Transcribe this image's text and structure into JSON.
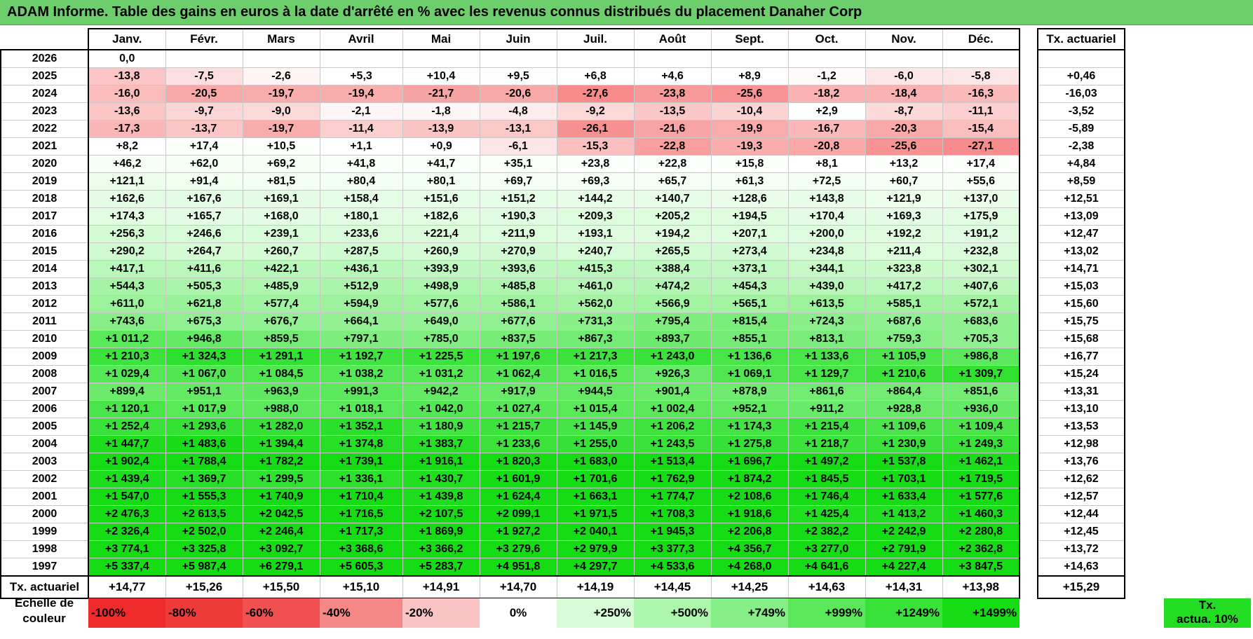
{
  "title": "ADAM Informe. Table des gains en euros à la date d'arrêté en % avec les revenus connus distribués du placement Danaher Corp",
  "months": [
    "Janv.",
    "Févr.",
    "Mars",
    "Avril",
    "Mai",
    "Juin",
    "Juil.",
    "Août",
    "Sept.",
    "Oct.",
    "Nov.",
    "Déc."
  ],
  "right_header": "Tx. actuariel",
  "rows": [
    {
      "year": "2026",
      "values": [
        "0,0",
        "",
        "",
        "",
        "",
        "",
        "",
        "",
        "",
        "",
        "",
        ""
      ],
      "rate": ""
    },
    {
      "year": "2025",
      "values": [
        "-13,8",
        "-7,5",
        "-2,6",
        "+5,3",
        "+10,4",
        "+9,5",
        "+6,8",
        "+4,6",
        "+8,9",
        "-1,2",
        "-6,0",
        "-5,8"
      ],
      "rate": "+0,46"
    },
    {
      "year": "2024",
      "values": [
        "-16,0",
        "-20,5",
        "-19,7",
        "-19,4",
        "-21,7",
        "-20,6",
        "-27,6",
        "-23,8",
        "-25,6",
        "-18,2",
        "-18,4",
        "-16,3"
      ],
      "rate": "-16,03"
    },
    {
      "year": "2023",
      "values": [
        "-13,6",
        "-9,7",
        "-9,0",
        "-2,1",
        "-1,8",
        "-4,8",
        "-9,2",
        "-13,5",
        "-10,4",
        "+2,9",
        "-8,7",
        "-11,1"
      ],
      "rate": "-3,52"
    },
    {
      "year": "2022",
      "values": [
        "-17,3",
        "-13,7",
        "-19,7",
        "-11,4",
        "-13,9",
        "-13,1",
        "-26,1",
        "-21,6",
        "-19,9",
        "-16,7",
        "-20,3",
        "-15,4"
      ],
      "rate": "-5,89"
    },
    {
      "year": "2021",
      "values": [
        "+8,2",
        "+17,4",
        "+10,5",
        "+1,1",
        "+0,9",
        "-6,1",
        "-15,3",
        "-22,8",
        "-19,3",
        "-20,8",
        "-25,6",
        "-27,1"
      ],
      "rate": "-2,38"
    },
    {
      "year": "2020",
      "values": [
        "+46,2",
        "+62,0",
        "+69,2",
        "+41,8",
        "+41,7",
        "+35,1",
        "+23,8",
        "+22,8",
        "+15,8",
        "+8,1",
        "+13,2",
        "+17,4"
      ],
      "rate": "+4,84"
    },
    {
      "year": "2019",
      "values": [
        "+121,1",
        "+91,4",
        "+81,5",
        "+80,4",
        "+80,1",
        "+69,7",
        "+69,3",
        "+65,7",
        "+61,3",
        "+72,5",
        "+60,7",
        "+55,6"
      ],
      "rate": "+8,59"
    },
    {
      "year": "2018",
      "values": [
        "+162,6",
        "+167,6",
        "+169,1",
        "+158,4",
        "+151,6",
        "+151,2",
        "+144,2",
        "+140,7",
        "+128,6",
        "+143,8",
        "+121,9",
        "+137,0"
      ],
      "rate": "+12,51"
    },
    {
      "year": "2017",
      "values": [
        "+174,3",
        "+165,7",
        "+168,0",
        "+180,1",
        "+182,6",
        "+190,3",
        "+209,3",
        "+205,2",
        "+194,5",
        "+170,4",
        "+169,3",
        "+175,9"
      ],
      "rate": "+13,09"
    },
    {
      "year": "2016",
      "values": [
        "+256,3",
        "+246,6",
        "+239,1",
        "+233,6",
        "+221,4",
        "+211,9",
        "+193,1",
        "+194,2",
        "+207,1",
        "+200,0",
        "+192,2",
        "+191,2"
      ],
      "rate": "+12,47"
    },
    {
      "year": "2015",
      "values": [
        "+290,2",
        "+264,7",
        "+260,7",
        "+287,5",
        "+260,9",
        "+270,9",
        "+240,7",
        "+265,5",
        "+273,4",
        "+234,8",
        "+211,4",
        "+232,8"
      ],
      "rate": "+13,02"
    },
    {
      "year": "2014",
      "values": [
        "+417,1",
        "+411,6",
        "+422,1",
        "+436,1",
        "+393,9",
        "+393,6",
        "+415,3",
        "+388,4",
        "+373,1",
        "+344,1",
        "+323,8",
        "+302,1"
      ],
      "rate": "+14,71"
    },
    {
      "year": "2013",
      "values": [
        "+544,3",
        "+505,3",
        "+485,9",
        "+512,9",
        "+498,9",
        "+485,8",
        "+461,0",
        "+474,2",
        "+454,3",
        "+439,0",
        "+417,2",
        "+407,6"
      ],
      "rate": "+15,03"
    },
    {
      "year": "2012",
      "values": [
        "+611,0",
        "+621,8",
        "+577,4",
        "+594,9",
        "+577,6",
        "+586,1",
        "+562,0",
        "+566,9",
        "+565,1",
        "+613,5",
        "+585,1",
        "+572,1"
      ],
      "rate": "+15,60"
    },
    {
      "year": "2011",
      "values": [
        "+743,6",
        "+675,3",
        "+676,7",
        "+664,1",
        "+649,0",
        "+677,6",
        "+731,3",
        "+795,4",
        "+815,4",
        "+724,3",
        "+687,6",
        "+683,6"
      ],
      "rate": "+15,75"
    },
    {
      "year": "2010",
      "values": [
        "+1 011,2",
        "+946,8",
        "+859,5",
        "+797,1",
        "+785,0",
        "+837,5",
        "+867,3",
        "+893,7",
        "+855,1",
        "+813,1",
        "+759,3",
        "+705,3"
      ],
      "rate": "+15,68"
    },
    {
      "year": "2009",
      "values": [
        "+1 210,3",
        "+1 324,3",
        "+1 291,1",
        "+1 192,7",
        "+1 225,5",
        "+1 197,6",
        "+1 217,3",
        "+1 243,0",
        "+1 136,6",
        "+1 133,6",
        "+1 105,9",
        "+986,8"
      ],
      "rate": "+16,77"
    },
    {
      "year": "2008",
      "values": [
        "+1 029,4",
        "+1 067,0",
        "+1 084,5",
        "+1 038,2",
        "+1 031,2",
        "+1 062,4",
        "+1 016,5",
        "+926,3",
        "+1 069,1",
        "+1 129,7",
        "+1 210,6",
        "+1 309,7"
      ],
      "rate": "+15,24"
    },
    {
      "year": "2007",
      "values": [
        "+899,4",
        "+951,1",
        "+963,9",
        "+991,3",
        "+942,2",
        "+917,9",
        "+944,5",
        "+901,4",
        "+878,9",
        "+861,6",
        "+864,4",
        "+851,6"
      ],
      "rate": "+13,31"
    },
    {
      "year": "2006",
      "values": [
        "+1 120,1",
        "+1 017,9",
        "+988,0",
        "+1 018,1",
        "+1 042,0",
        "+1 027,4",
        "+1 015,4",
        "+1 002,4",
        "+952,1",
        "+911,2",
        "+928,8",
        "+936,0"
      ],
      "rate": "+13,10"
    },
    {
      "year": "2005",
      "values": [
        "+1 252,4",
        "+1 293,6",
        "+1 282,0",
        "+1 352,1",
        "+1 180,9",
        "+1 215,7",
        "+1 145,9",
        "+1 206,2",
        "+1 174,3",
        "+1 215,4",
        "+1 109,6",
        "+1 109,4"
      ],
      "rate": "+13,53"
    },
    {
      "year": "2004",
      "values": [
        "+1 447,7",
        "+1 483,6",
        "+1 394,4",
        "+1 374,8",
        "+1 383,7",
        "+1 233,6",
        "+1 255,0",
        "+1 243,5",
        "+1 275,8",
        "+1 218,7",
        "+1 230,9",
        "+1 249,3"
      ],
      "rate": "+12,98"
    },
    {
      "year": "2003",
      "values": [
        "+1 902,4",
        "+1 788,4",
        "+1 782,2",
        "+1 739,1",
        "+1 916,1",
        "+1 820,3",
        "+1 683,0",
        "+1 513,4",
        "+1 696,7",
        "+1 497,2",
        "+1 537,8",
        "+1 462,1"
      ],
      "rate": "+13,76"
    },
    {
      "year": "2002",
      "values": [
        "+1 439,4",
        "+1 369,7",
        "+1 299,5",
        "+1 336,1",
        "+1 430,7",
        "+1 601,9",
        "+1 701,6",
        "+1 762,9",
        "+1 874,2",
        "+1 845,5",
        "+1 703,1",
        "+1 719,5"
      ],
      "rate": "+12,62"
    },
    {
      "year": "2001",
      "values": [
        "+1 547,0",
        "+1 555,3",
        "+1 740,9",
        "+1 710,4",
        "+1 439,8",
        "+1 624,4",
        "+1 663,1",
        "+1 774,7",
        "+2 108,6",
        "+1 746,4",
        "+1 633,4",
        "+1 577,6"
      ],
      "rate": "+12,57"
    },
    {
      "year": "2000",
      "values": [
        "+2 476,3",
        "+2 613,5",
        "+2 042,5",
        "+1 716,5",
        "+2 107,5",
        "+2 099,1",
        "+1 971,5",
        "+1 708,3",
        "+1 918,6",
        "+1 425,4",
        "+1 413,2",
        "+1 460,3"
      ],
      "rate": "+12,44"
    },
    {
      "year": "1999",
      "values": [
        "+2 326,4",
        "+2 502,0",
        "+2 246,4",
        "+1 717,3",
        "+1 869,9",
        "+1 927,2",
        "+2 040,1",
        "+1 945,3",
        "+2 206,8",
        "+2 382,2",
        "+2 242,9",
        "+2 280,8"
      ],
      "rate": "+12,45"
    },
    {
      "year": "1998",
      "values": [
        "+3 774,1",
        "+3 325,8",
        "+3 092,7",
        "+3 368,6",
        "+3 366,2",
        "+3 279,6",
        "+2 979,9",
        "+3 377,3",
        "+4 356,7",
        "+3 277,0",
        "+2 791,9",
        "+2 362,8"
      ],
      "rate": "+13,72"
    },
    {
      "year": "1997",
      "values": [
        "+5 337,4",
        "+5 987,4",
        "+6 279,1",
        "+5 605,3",
        "+5 283,7",
        "+4 951,8",
        "+4 297,7",
        "+4 533,6",
        "+4 268,0",
        "+4 641,6",
        "+4 227,4",
        "+3 847,5"
      ],
      "rate": "+14,63"
    }
  ],
  "summary": {
    "label": "Tx. actuariel",
    "values": [
      "+14,77",
      "+15,26",
      "+15,50",
      "+15,10",
      "+14,91",
      "+14,70",
      "+14,19",
      "+14,45",
      "+14,25",
      "+14,63",
      "+14,31",
      "+13,98"
    ],
    "total": "+15,29"
  },
  "legend": {
    "label_line1": "Echelle de",
    "label_line2": "couleur",
    "swatches": [
      {
        "text": "-100%",
        "color": "#ee2a2a",
        "kind": "neg"
      },
      {
        "text": "-80%",
        "color": "#ef3a3a",
        "kind": "neg"
      },
      {
        "text": "-60%",
        "color": "#f15050",
        "kind": "neg"
      },
      {
        "text": "-40%",
        "color": "#f58787",
        "kind": "neg"
      },
      {
        "text": "-20%",
        "color": "#fac4c4",
        "kind": "neg"
      },
      {
        "text": "0%",
        "color": "#ffffff",
        "kind": "zero"
      },
      {
        "text": "+250%",
        "color": "#d6fbd6",
        "kind": "pos"
      },
      {
        "text": "+500%",
        "color": "#acf5ac",
        "kind": "pos"
      },
      {
        "text": "+749%",
        "color": "#86ee86",
        "kind": "pos"
      },
      {
        "text": "+999%",
        "color": "#5ae85a",
        "kind": "pos"
      },
      {
        "text": "+1249%",
        "color": "#38e238",
        "kind": "pos"
      },
      {
        "text": "+1499%",
        "color": "#16dc16",
        "kind": "pos"
      }
    ],
    "right_line1": "Tx.",
    "right_line2": "actua. 10%"
  },
  "colors": {
    "title_bg": "#6ccf6c",
    "legend_right": "#22dd22"
  }
}
